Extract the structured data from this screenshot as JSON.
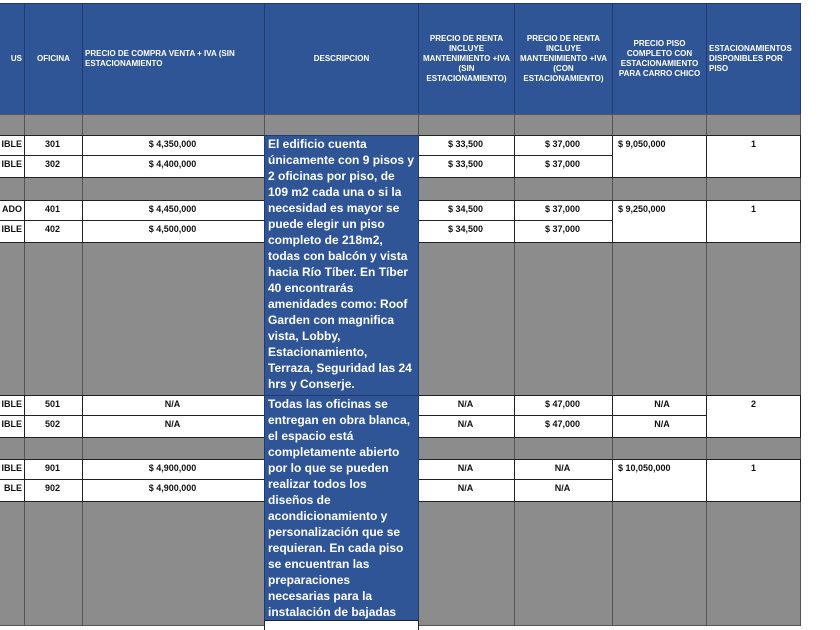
{
  "table": {
    "headers": [
      "US",
      "OFICINA",
      "PRECIO DE COMPRA VENTA + IVA (SIN ESTACIONAMIENTO",
      "DESCRIPCION",
      "PRECIO DE RENTA INCLUYE MANTENIMIENTO +IVA (SIN ESTACIONAMIENTO)",
      "PRECIO DE RENTA INCLUYE MANTENIMIENTO +IVA (CON ESTACIONAMIENTO)",
      "PRECIO PISO COMPLETO CON ESTACIONAMIENTO PARA CARRO CHICO",
      "ESTACIONAMIENTOS DISPONIBLES POR PISO"
    ],
    "rows": [
      [
        "IBLE",
        "301",
        "$ 4,350,000",
        "$ 33,500",
        "$ 37,000"
      ],
      [
        "IBLE",
        "302",
        "$ 4,400,000",
        "$ 33,500",
        "$ 37,000"
      ],
      [
        "ADO",
        "401",
        "$ 4,450,000",
        "$ 34,500",
        "$ 37,000"
      ],
      [
        "IBLE",
        "402",
        "$ 4,500,000",
        "$ 34,500",
        "$ 37,000"
      ],
      [
        "IBLE",
        "501",
        "N/A",
        "N/A",
        "$ 47,000"
      ],
      [
        "IBLE",
        "502",
        "N/A",
        "N/A",
        "$ 47,000"
      ],
      [
        "IBLE",
        "901",
        "$ 4,900,000",
        "N/A",
        "N/A"
      ],
      [
        "BLE",
        "902",
        "$ 4,900,000",
        "N/A",
        "N/A"
      ]
    ],
    "floor_prices": [
      "$ 9,050,000",
      "$ 9,250,000",
      "N/A",
      "N/A",
      "$ 10,050,000"
    ],
    "parking": [
      "1",
      "1",
      "2",
      "1"
    ],
    "descriptions": [
      "El edificio cuenta únicamente con 9 pisos y 2 oficinas por piso, de 109 m2 cada una o si la necesidad es mayor se puede elegir un piso completo de 218m2, todas con balcón y vista hacia Río Tíber. En Tíber 40 encontrarás amenidades como: Roof Garden con magnifica vista, Lobby, Estacionamiento, Terraza, Seguridad las 24 hrs y Conserje.",
      "Todas las oficinas se entregan en obra blanca, el espacio está completamente abierto por lo que se pueden realizar todos los diseños de acondicionamiento y personalización que se requieran. En cada piso se encuentran las preparaciones necesarias para la instalación de bajadas eléctricas, cableado de voz y datos."
    ]
  }
}
